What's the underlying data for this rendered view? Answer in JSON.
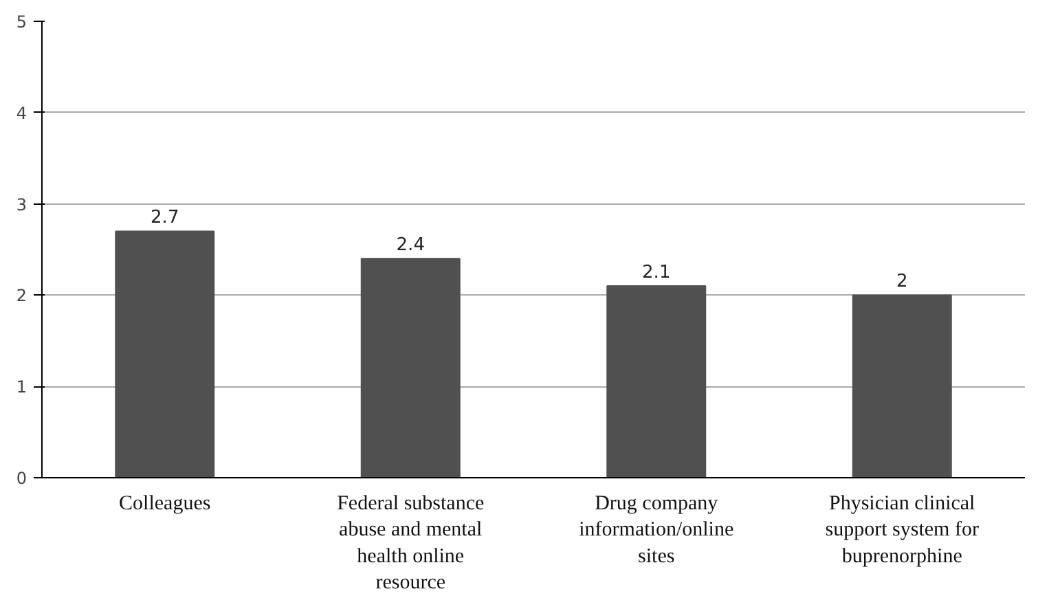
{
  "chart_data": {
    "type": "bar",
    "categories": [
      "Colleagues",
      "Federal substance abuse and mental health online resource",
      "Drug company information/online sites",
      "Physician clinical support system for buprenorphine"
    ],
    "values": [
      2.7,
      2.4,
      2.1,
      2
    ],
    "color": "#505050",
    "ylim": [
      0,
      5
    ],
    "yticks": [
      0,
      1,
      2,
      3,
      4,
      5
    ],
    "grid": "y",
    "data_labels": true
  }
}
